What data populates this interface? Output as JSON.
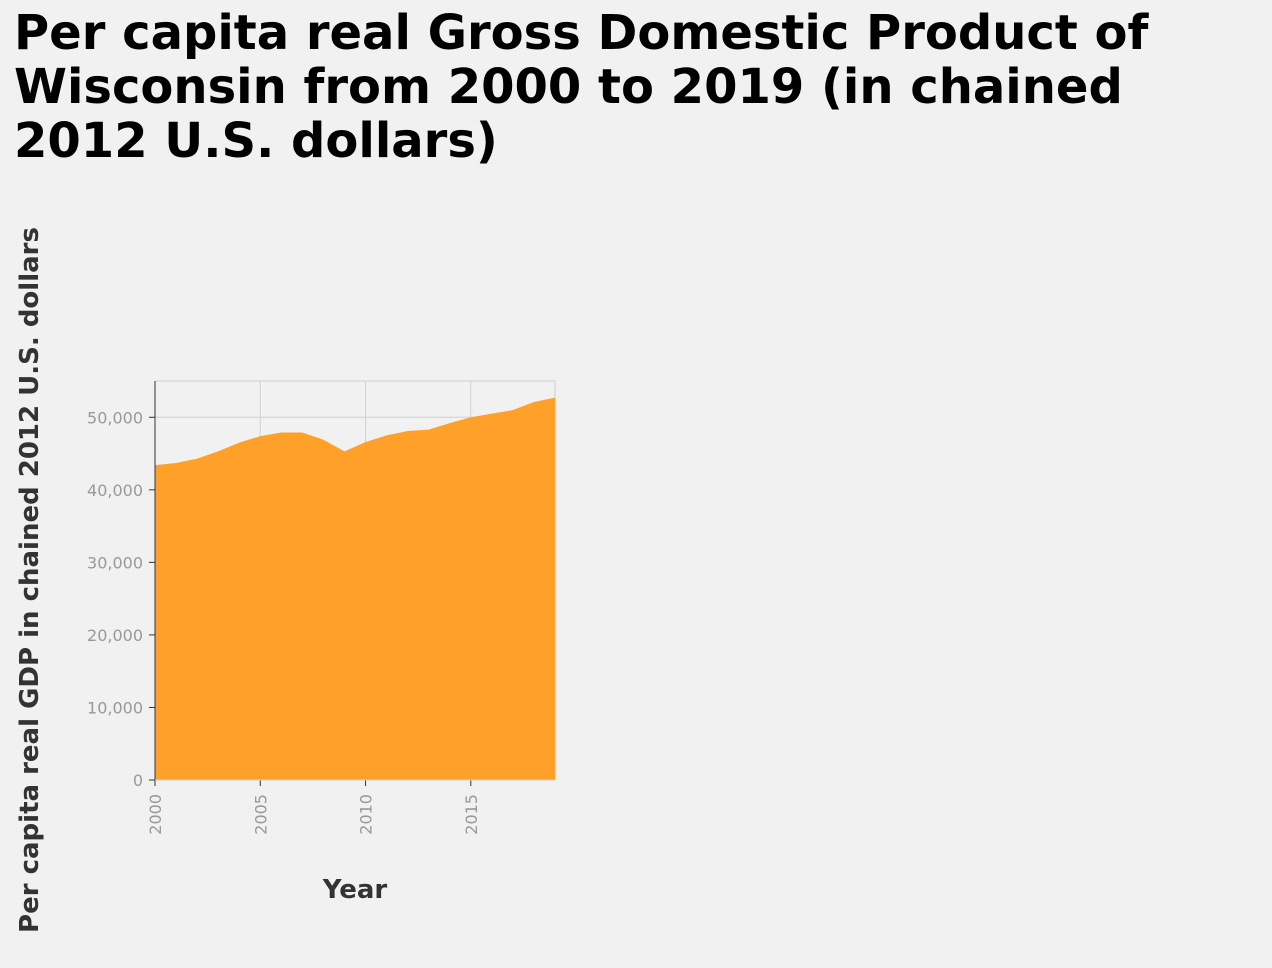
{
  "chart_data": {
    "type": "area",
    "title": "Per capita real Gross Domestic Product of Wisconsin from 2000 to 2019 (in chained 2012 U.S. dollars)",
    "xlabel": "Year",
    "ylabel": "Per capita real GDP in chained 2012 U.S. dollars",
    "x": [
      2000,
      2001,
      2002,
      2003,
      2004,
      2005,
      2006,
      2007,
      2008,
      2009,
      2010,
      2011,
      2012,
      2013,
      2014,
      2015,
      2016,
      2017,
      2018,
      2019
    ],
    "series": [
      {
        "values": [
          43400,
          43700,
          44300,
          45300,
          46500,
          47400,
          47900,
          47900,
          46900,
          45300,
          46600,
          47500,
          48100,
          48300,
          49200,
          50000,
          50500,
          51000,
          52100,
          52700
        ],
        "color": "#ffa02b"
      }
    ],
    "xlim": [
      2000,
      2019
    ],
    "ylim": [
      0,
      55000
    ],
    "xticks": [
      2000,
      2005,
      2010,
      2015
    ],
    "yticks": [
      0,
      10000,
      20000,
      30000,
      40000,
      50000
    ],
    "ytick_labels": [
      "0",
      "10,000",
      "20,000",
      "30,000",
      "40,000",
      "50,000"
    ],
    "grid": true,
    "gridline_color": "#d0d0d0"
  }
}
